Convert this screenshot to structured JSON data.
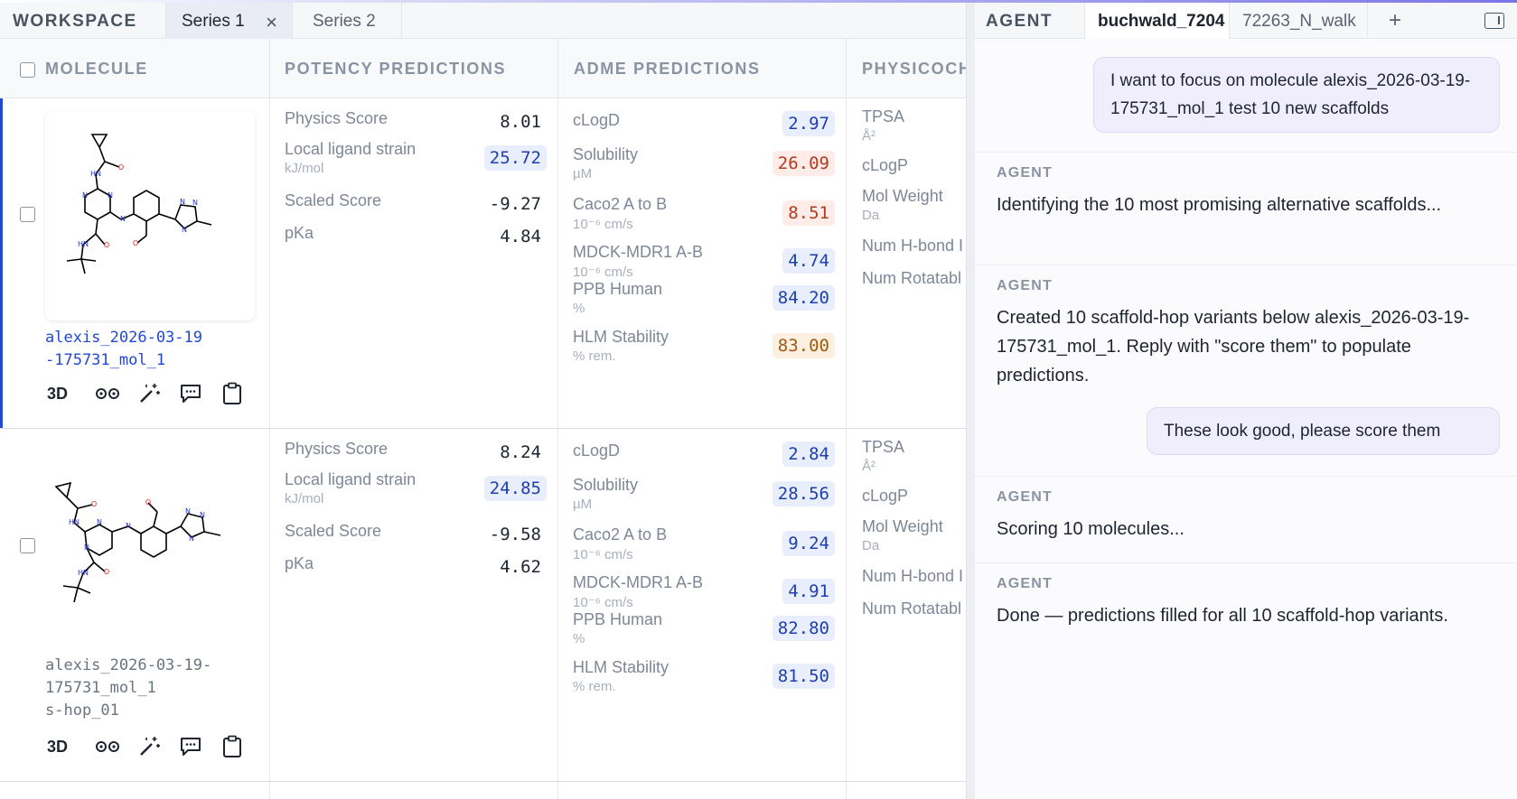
{
  "workspace": {
    "label": "WORKSPACE",
    "tabs": [
      {
        "label": "Series 1",
        "active": true
      },
      {
        "label": "Series 2",
        "active": false
      }
    ],
    "columns": {
      "molecule": "MOLECULE",
      "potency": "POTENCY PREDICTIONS",
      "adme": "ADME PREDICTIONS",
      "physchem": "PHYSICOCH"
    },
    "rows": [
      {
        "name": "alexis_2026-03-19\n-175731_mol_1",
        "selected": true,
        "tools": [
          "3D",
          "glasses-icon",
          "magic-wand-icon",
          "comment-icon",
          "clipboard-icon"
        ],
        "potency": [
          {
            "name": "Physics Score",
            "unit": "",
            "value": "8.01",
            "highlight": "none"
          },
          {
            "name": "Local ligand strain",
            "unit": "kJ/mol",
            "value": "25.72",
            "highlight": "blue"
          },
          {
            "name": "Scaled Score",
            "unit": "",
            "value": "-9.27",
            "highlight": "none"
          },
          {
            "name": "pKa",
            "unit": "",
            "value": "4.84",
            "highlight": "none"
          }
        ],
        "adme": [
          {
            "name": "cLogD",
            "unit": "",
            "value": "2.97",
            "highlight": "blue"
          },
          {
            "name": "Solubility",
            "unit": "µM",
            "value": "26.09",
            "highlight": "red"
          },
          {
            "name": "Caco2 A to B",
            "unit": "10⁻⁶ cm/s",
            "value": "8.51",
            "highlight": "red"
          },
          {
            "name": "MDCK-MDR1 A-B",
            "unit": "10⁻⁶ cm/s",
            "value": "4.74",
            "highlight": "blue"
          },
          {
            "name": "PPB Human",
            "unit": "%",
            "value": "84.20",
            "highlight": "blue"
          },
          {
            "name": "HLM Stability",
            "unit": "% rem.",
            "value": "83.00",
            "highlight": "amber"
          }
        ],
        "physchem": [
          {
            "name": "TPSA",
            "unit": "Å²"
          },
          {
            "name": "cLogP",
            "unit": ""
          },
          {
            "name": "Mol Weight",
            "unit": "Da"
          },
          {
            "name": "Num H-bond I",
            "unit": ""
          },
          {
            "name": "Num Rotatabl",
            "unit": ""
          }
        ]
      },
      {
        "name": "alexis_2026-03-19-\n175731_mol_1\ns-hop_01",
        "selected": false,
        "tools": [
          "3D",
          "glasses-icon",
          "magic-wand-icon",
          "comment-icon",
          "clipboard-icon"
        ],
        "potency": [
          {
            "name": "Physics Score",
            "unit": "",
            "value": "8.24",
            "highlight": "none"
          },
          {
            "name": "Local ligand strain",
            "unit": "kJ/mol",
            "value": "24.85",
            "highlight": "blue"
          },
          {
            "name": "Scaled Score",
            "unit": "",
            "value": "-9.58",
            "highlight": "none"
          },
          {
            "name": "pKa",
            "unit": "",
            "value": "4.62",
            "highlight": "none"
          }
        ],
        "adme": [
          {
            "name": "cLogD",
            "unit": "",
            "value": "2.84",
            "highlight": "blue"
          },
          {
            "name": "Solubility",
            "unit": "µM",
            "value": "28.56",
            "highlight": "blue"
          },
          {
            "name": "Caco2 A to B",
            "unit": "10⁻⁶ cm/s",
            "value": "9.24",
            "highlight": "blue"
          },
          {
            "name": "MDCK-MDR1 A-B",
            "unit": "10⁻⁶ cm/s",
            "value": "4.91",
            "highlight": "blue"
          },
          {
            "name": "PPB Human",
            "unit": "%",
            "value": "82.80",
            "highlight": "blue"
          },
          {
            "name": "HLM Stability",
            "unit": "% rem.",
            "value": "81.50",
            "highlight": "blue"
          }
        ],
        "physchem": [
          {
            "name": "TPSA",
            "unit": "Å²"
          },
          {
            "name": "cLogP",
            "unit": ""
          },
          {
            "name": "Mol Weight",
            "unit": "Da"
          },
          {
            "name": "Num H-bond I",
            "unit": ""
          },
          {
            "name": "Num Rotatabl",
            "unit": ""
          }
        ]
      }
    ]
  },
  "agent": {
    "label": "AGENT",
    "tabs": [
      {
        "label": "buchwald_7204",
        "active": true
      },
      {
        "label": "72263_N_walk",
        "active": false
      }
    ],
    "add_label": "+",
    "messages": [
      {
        "role": "user",
        "text": "I want to focus on molecule alexis_2026-03-19-175731_mol_1 test 10 new scaffolds"
      },
      {
        "role": "agent",
        "tag": "AGENT",
        "text": "Identifying the 10 most promising alternative scaffolds..."
      },
      {
        "role": "agent",
        "tag": "AGENT",
        "text": "Created 10 scaffold-hop variants below alexis_2026-03-19-175731_mol_1. Reply with \"score them\" to populate predictions."
      },
      {
        "role": "user",
        "text": "These look good, please score them"
      },
      {
        "role": "agent",
        "tag": "AGENT",
        "text": "Scoring 10 molecules..."
      },
      {
        "role": "agent",
        "tag": "AGENT",
        "text": "Done — predictions filled for all 10 scaffold-hop variants."
      }
    ]
  },
  "colors": {
    "accent": "#2248d6",
    "highlight_blue": "#e8eefb",
    "highlight_red": "#fdece7",
    "highlight_amber": "#fdf0e1",
    "user_bubble": "#f0eefc"
  }
}
